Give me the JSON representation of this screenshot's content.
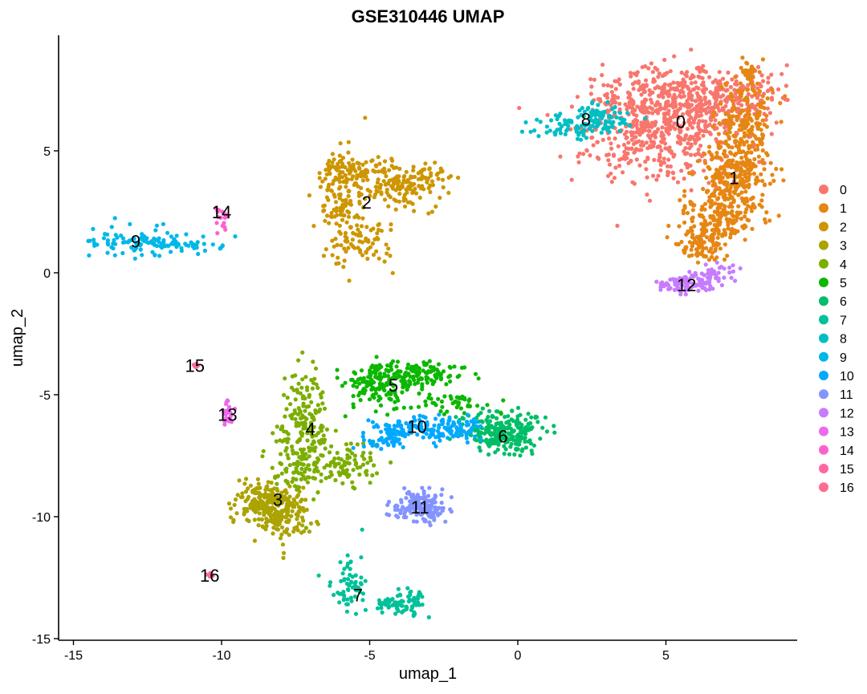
{
  "chart_data": {
    "type": "scatter",
    "title": "GSE310446 UMAP",
    "xlabel": "umap_1",
    "ylabel": "umap_2",
    "xlim": [
      -15.5,
      9.5
    ],
    "ylim": [
      -15.2,
      9.8
    ],
    "x_ticks": [
      -15,
      -10,
      -5,
      0,
      5
    ],
    "x_tick_labels": [
      "-15",
      "-10",
      "-5",
      "0",
      "5"
    ],
    "y_ticks": [
      -15,
      -10,
      -5,
      0,
      5
    ],
    "y_tick_labels": [
      "-15",
      "-10",
      "-5",
      "0",
      "5"
    ],
    "grid": false,
    "legend_position": "right",
    "clusters": [
      {
        "name": "0",
        "color": "#F8766D",
        "center": [
          5.5,
          6.2
        ],
        "points": 900
      },
      {
        "name": "1",
        "color": "#E68613",
        "center": [
          7.3,
          3.9
        ],
        "points": 700
      },
      {
        "name": "2",
        "color": "#CD9600",
        "center": [
          -5.1,
          2.9
        ],
        "points": 420
      },
      {
        "name": "3",
        "color": "#ABA300",
        "center": [
          -8.1,
          -9.3
        ],
        "points": 300
      },
      {
        "name": "4",
        "color": "#7CAE00",
        "center": [
          -7.0,
          -6.4
        ],
        "points": 320
      },
      {
        "name": "5",
        "color": "#0CB702",
        "center": [
          -4.2,
          -4.6
        ],
        "points": 300
      },
      {
        "name": "6",
        "color": "#00BE67",
        "center": [
          -0.5,
          -6.7
        ],
        "points": 240
      },
      {
        "name": "7",
        "color": "#00C19A",
        "center": [
          -5.4,
          -13.2
        ],
        "points": 140
      },
      {
        "name": "8",
        "color": "#00BFC4",
        "center": [
          2.3,
          6.3
        ],
        "points": 140
      },
      {
        "name": "9",
        "color": "#00B8E7",
        "center": [
          -12.9,
          1.3
        ],
        "points": 130
      },
      {
        "name": "10",
        "color": "#00A9FF",
        "center": [
          -3.4,
          -6.3
        ],
        "points": 200
      },
      {
        "name": "11",
        "color": "#8494FF",
        "center": [
          -3.3,
          -9.6
        ],
        "points": 160
      },
      {
        "name": "12",
        "color": "#C77CFF",
        "center": [
          5.7,
          -0.5
        ],
        "points": 130
      },
      {
        "name": "13",
        "color": "#ED68ED",
        "center": [
          -9.8,
          -5.8
        ],
        "points": 24
      },
      {
        "name": "14",
        "color": "#FF61CC",
        "center": [
          -10.0,
          2.5
        ],
        "points": 16
      },
      {
        "name": "15",
        "color": "#FF68A1",
        "center": [
          -10.9,
          -3.8
        ],
        "points": 8
      },
      {
        "name": "16",
        "color": "#FF6C90",
        "center": [
          -10.4,
          -12.4
        ],
        "points": 6
      }
    ]
  }
}
